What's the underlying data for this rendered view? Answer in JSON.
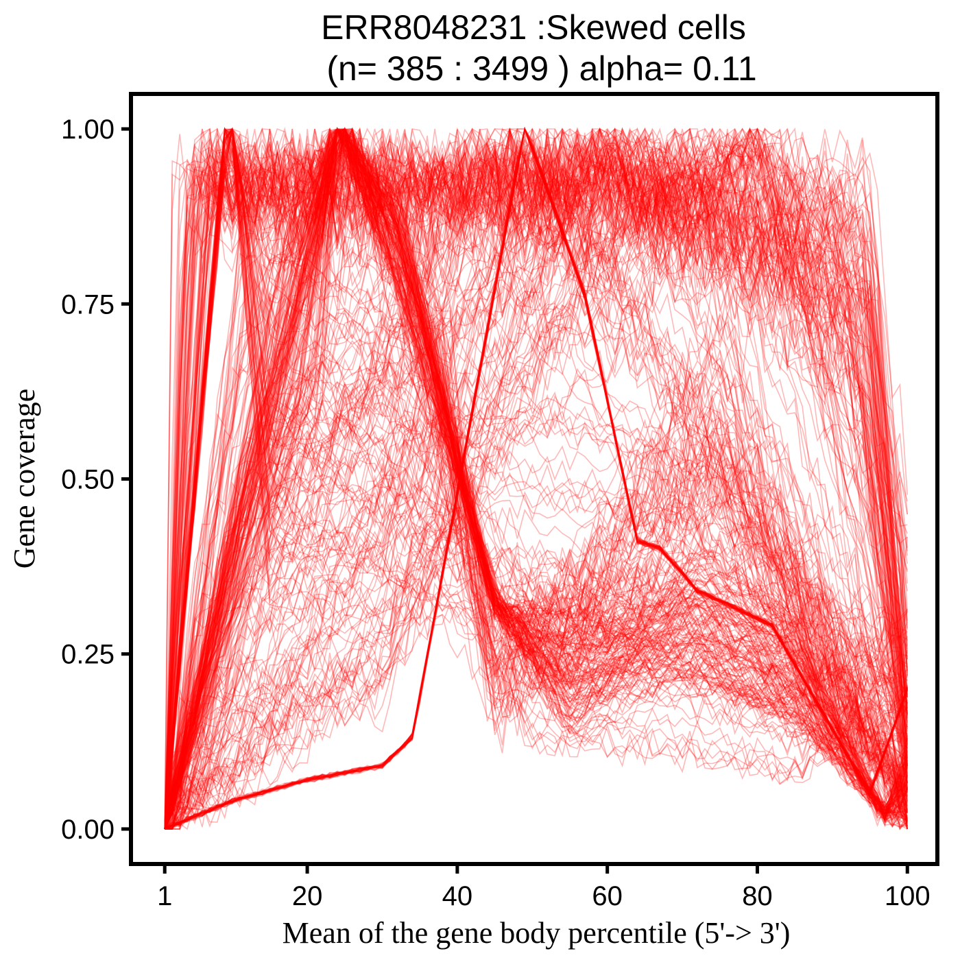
{
  "chart_data": {
    "type": "line",
    "title_line1": "ERR8048231 :Skewed cells",
    "title_line2": "(n= 385 : 3499 ) alpha= 0.11",
    "xlabel": "Mean of the gene body percentile (5'-> 3')",
    "ylabel": "Gene coverage",
    "x_ticks": [
      "1",
      "20",
      "40",
      "60",
      "80",
      "100"
    ],
    "x_tick_values": [
      1,
      20,
      40,
      60,
      80,
      100
    ],
    "y_ticks": [
      "0.00",
      "0.25",
      "0.50",
      "0.75",
      "1.00"
    ],
    "y_tick_values": [
      0,
      0.25,
      0.5,
      0.75,
      1.0
    ],
    "xlim": [
      -3.5,
      104
    ],
    "ylim": [
      -0.05,
      1.05
    ],
    "x_range": [
      1,
      100
    ],
    "line_color": "#ff0000",
    "line_opacity": 0.28,
    "grid": false,
    "n_cells": 385,
    "alpha": 0.11,
    "series": [
      {
        "x": [
          1,
          10,
          20,
          24,
          30,
          40,
          50,
          60,
          70,
          80,
          90,
          100
        ],
        "values": [
          0,
          1.0,
          0.55,
          0.45,
          0.4,
          0.3,
          0.22,
          0.2,
          0.25,
          0.22,
          0.12,
          0
        ]
      },
      {
        "x": [
          1,
          20,
          24,
          30,
          40,
          50,
          60,
          70,
          80,
          90,
          100
        ],
        "values": [
          0,
          0.9,
          1.0,
          0.82,
          0.45,
          0.17,
          0.16,
          0.3,
          0.31,
          0.15,
          0
        ]
      },
      {
        "x": [
          1,
          10,
          20,
          24,
          30,
          40,
          50,
          60,
          70,
          80,
          90,
          100
        ],
        "values": [
          0,
          0.05,
          0.07,
          0.08,
          0.1,
          0.5,
          1.0,
          0.67,
          0.38,
          0.3,
          0.15,
          0.12
        ]
      },
      {
        "x": [
          1,
          5,
          10,
          20,
          30,
          40,
          50,
          60,
          70,
          80,
          90,
          97,
          100
        ],
        "values": [
          0,
          0.95,
          0.93,
          0.92,
          0.9,
          0.88,
          0.87,
          0.86,
          0.85,
          0.85,
          0.85,
          0.8,
          0
        ]
      },
      {
        "x": [
          1,
          10,
          20,
          30,
          40,
          50,
          60,
          70,
          80,
          90,
          100
        ],
        "values": [
          0,
          0.2,
          0.45,
          0.6,
          0.75,
          0.8,
          0.82,
          0.83,
          0.82,
          0.7,
          0
        ]
      },
      {
        "x": [
          1,
          10,
          20,
          30,
          35,
          40,
          50,
          60,
          70,
          80,
          90,
          100
        ],
        "values": [
          0,
          0.05,
          0.1,
          0.13,
          0.2,
          0.3,
          0.35,
          0.45,
          0.55,
          0.65,
          0.75,
          0.5
        ]
      }
    ]
  }
}
